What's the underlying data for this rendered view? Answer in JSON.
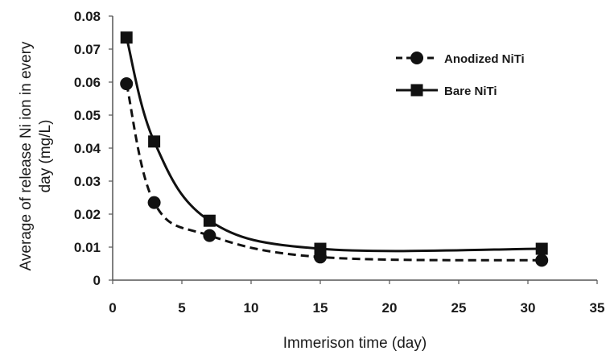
{
  "chart_data": {
    "type": "line",
    "title": "",
    "xlabel": "Immerison time (day)",
    "ylabel_lines": [
      "Average of release Ni ion in every",
      "day (mg/L)"
    ],
    "xlim": [
      0,
      35
    ],
    "ylim": [
      0,
      0.08
    ],
    "xticks": [
      0,
      5,
      10,
      15,
      20,
      25,
      30,
      35
    ],
    "yticks": [
      0,
      0.01,
      0.02,
      0.03,
      0.04,
      0.05,
      0.06,
      0.07,
      0.08
    ],
    "grid": false,
    "legend_position": "top-right",
    "series": [
      {
        "name": "Anodized NiTi",
        "marker": "circle",
        "line_style": "dashed",
        "color": "#111111",
        "x": [
          1,
          3,
          7,
          15,
          31
        ],
        "y": [
          0.0595,
          0.0235,
          0.0135,
          0.007,
          0.006
        ]
      },
      {
        "name": "Bare NiTi",
        "marker": "square",
        "line_style": "solid",
        "color": "#111111",
        "x": [
          1,
          3,
          7,
          15,
          31
        ],
        "y": [
          0.0735,
          0.042,
          0.018,
          0.0095,
          0.0095
        ]
      }
    ]
  }
}
